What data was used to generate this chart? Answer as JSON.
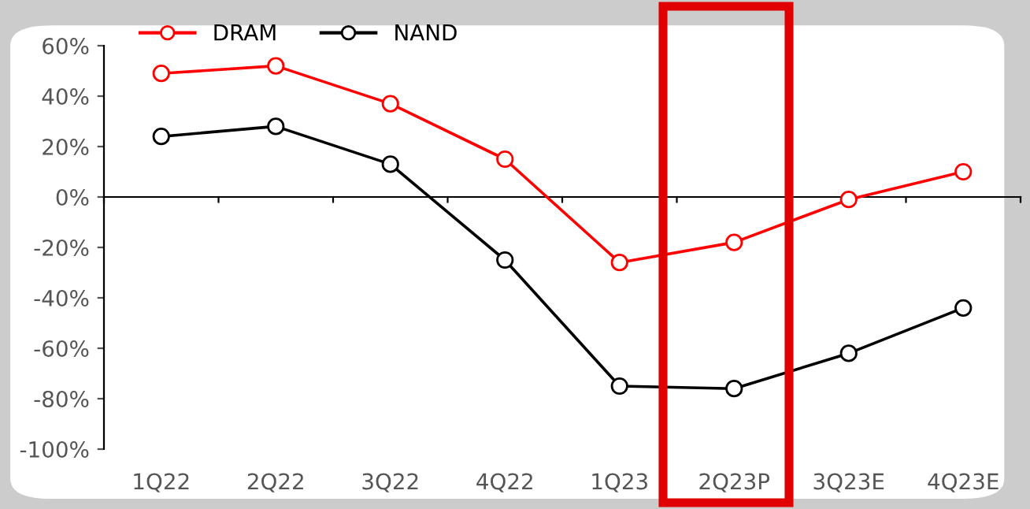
{
  "chart_data": {
    "type": "line",
    "categories": [
      "1Q22",
      "2Q22",
      "3Q22",
      "4Q22",
      "1Q23",
      "2Q23P",
      "3Q23E",
      "4Q23E"
    ],
    "series": [
      {
        "name": "DRAM",
        "color": "#ff0000",
        "values": [
          49,
          52,
          37,
          15,
          -26,
          -18,
          -1,
          10
        ]
      },
      {
        "name": "NAND",
        "color": "#000000",
        "values": [
          24,
          28,
          13,
          -25,
          -75,
          -76,
          -62,
          -44
        ]
      }
    ],
    "ylim": [
      -100,
      60
    ],
    "yticks": [
      {
        "value": -100,
        "label": "-100%"
      },
      {
        "value": -80,
        "label": "-80%"
      },
      {
        "value": -60,
        "label": "-60%"
      },
      {
        "value": -40,
        "label": "-40%"
      },
      {
        "value": -20,
        "label": "-20%"
      },
      {
        "value": 0,
        "label": "0%"
      },
      {
        "value": 20,
        "label": "20%"
      },
      {
        "value": 40,
        "label": "40%"
      },
      {
        "value": 60,
        "label": "60%"
      }
    ],
    "legend": "top left",
    "marker": "circle",
    "line_style": "solid"
  }
}
